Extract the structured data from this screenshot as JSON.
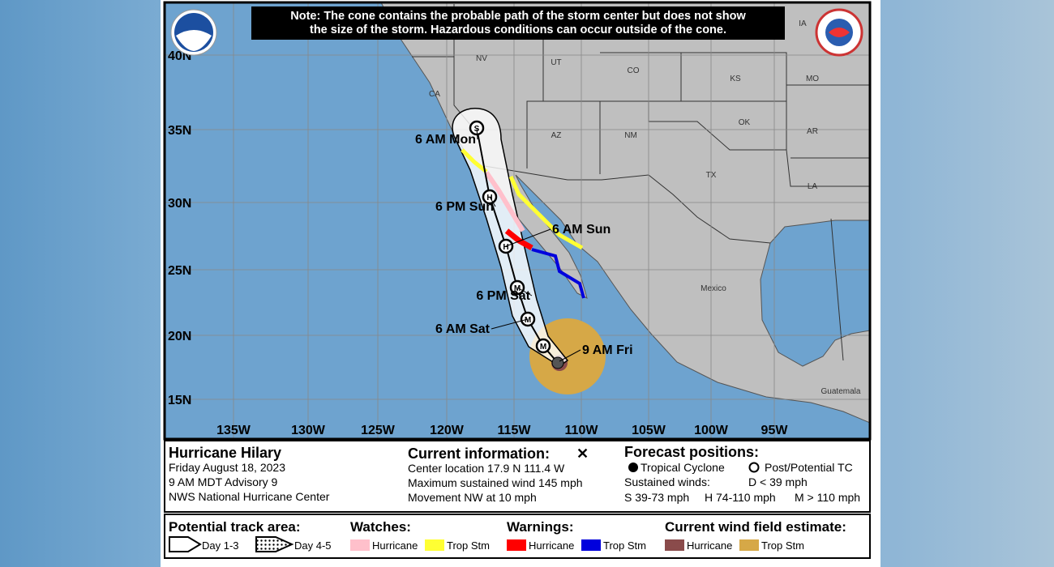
{
  "header": {
    "note": [
      "Note: The cone contains the probable path of the storm center but does not show",
      "the size of the storm. Hazardous conditions can occur outside of the cone."
    ]
  },
  "map": {
    "state_labels": [
      "NV",
      "UT",
      "CO",
      "KS",
      "MO",
      "IA",
      "CA",
      "AZ",
      "NM",
      "OK",
      "AR",
      "TX",
      "LA"
    ],
    "country_labels": [
      "Mexico",
      "Guatemala"
    ],
    "lat_labels": [
      "40N",
      "35N",
      "30N",
      "25N",
      "20N",
      "15N"
    ],
    "lon_labels": [
      "135W",
      "130W",
      "125W",
      "120W",
      "115W",
      "110W",
      "105W",
      "100W",
      "95W"
    ],
    "forecast_points": [
      {
        "letter": "M",
        "label": null
      },
      {
        "letter": "M",
        "label": "6 AM Sat"
      },
      {
        "letter": "M",
        "label": "6 PM Sat"
      },
      {
        "letter": "H",
        "label": "6 AM Sun"
      },
      {
        "letter": "H",
        "label": "6 PM Sun"
      },
      {
        "letter": "S",
        "label": "6 AM Mon"
      }
    ],
    "current_label": "9 AM Fri"
  },
  "info": {
    "storm": [
      "Hurricane Hilary",
      "Friday August 18, 2023",
      "9 AM MDT Advisory 9",
      "NWS National Hurricane Center"
    ],
    "current": {
      "heading": "Current information:",
      "symbol": "✕",
      "lines": [
        "Center location 17.9 N 111.4 W",
        "Maximum sustained wind 145 mph",
        "Movement NW at 10 mph"
      ]
    },
    "forecast": {
      "heading": "Forecast positions:",
      "tc": "Tropical Cyclone",
      "ptc": "Post/Potential TC",
      "winds_label": "Sustained winds:",
      "d": "D < 39 mph",
      "s": "S 39-73 mph",
      "h": "H 74-110 mph",
      "m": "M > 110 mph"
    }
  },
  "legend": {
    "track_heading": "Potential track area:",
    "day13": "Day 1-3",
    "day45": "Day 4-5",
    "watches_heading": "Watches:",
    "watch_hurricane": "Hurricane",
    "watch_trop": "Trop Stm",
    "warnings_heading": "Warnings:",
    "warn_hurricane": "Hurricane",
    "warn_trop": "Trop Stm",
    "wind_heading": "Current wind field estimate:",
    "wind_hurricane": "Hurricane",
    "wind_trop": "Trop Stm"
  }
}
